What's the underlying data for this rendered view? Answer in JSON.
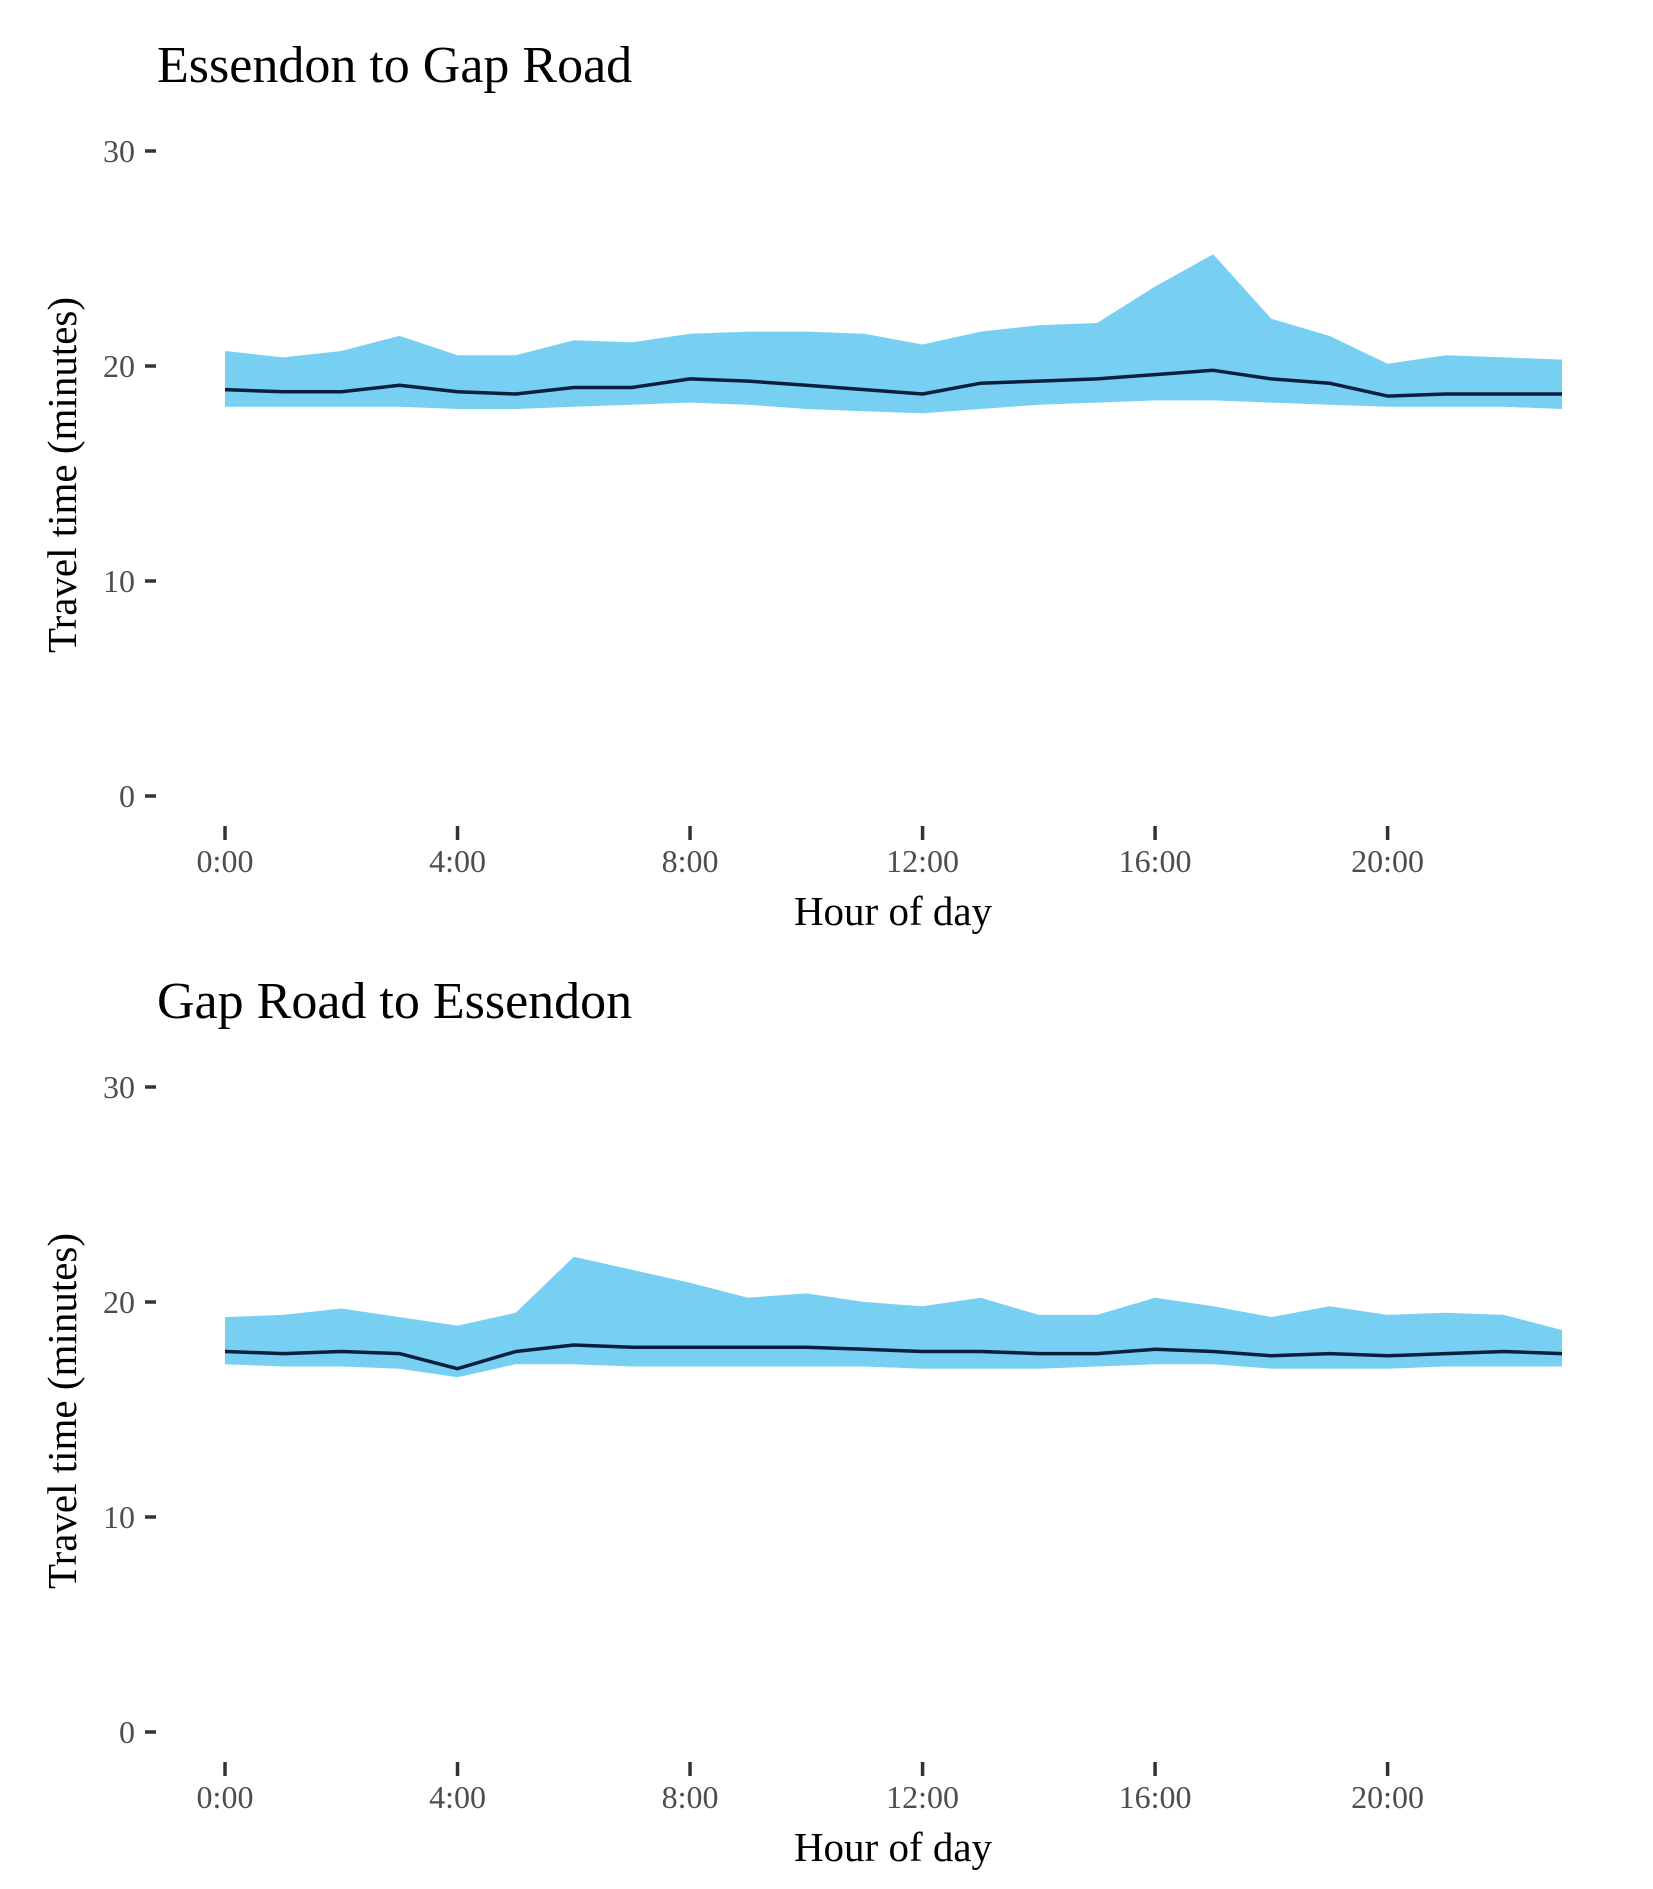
{
  "chart_data": [
    {
      "type": "area",
      "title": "Essendon to Gap Road",
      "xlabel": "Hour of day",
      "ylabel": "Travel time (minutes)",
      "ylim": [
        0,
        30
      ],
      "xlim": [
        0,
        23
      ],
      "x_ticks": [
        0,
        4,
        8,
        12,
        16,
        20
      ],
      "x_tick_labels": [
        "0:00",
        "4:00",
        "8:00",
        "12:00",
        "16:00",
        "20:00"
      ],
      "y_ticks": [
        0,
        10,
        20,
        30
      ],
      "y_tick_labels": [
        "0",
        "10",
        "20",
        "30"
      ],
      "x": [
        0,
        1,
        2,
        3,
        4,
        5,
        6,
        7,
        8,
        9,
        10,
        11,
        12,
        13,
        14,
        15,
        16,
        17,
        18,
        19,
        20,
        21,
        22,
        23
      ],
      "series": [
        {
          "role": "upper",
          "values": [
            20.7,
            20.4,
            20.7,
            21.4,
            20.5,
            20.5,
            21.2,
            21.1,
            21.5,
            21.6,
            21.6,
            21.5,
            21.0,
            21.6,
            21.9,
            22.0,
            23.7,
            25.2,
            22.2,
            21.4,
            20.1,
            20.5,
            20.4,
            20.3
          ]
        },
        {
          "role": "median",
          "values": [
            18.9,
            18.8,
            18.8,
            19.1,
            18.8,
            18.7,
            19.0,
            19.0,
            19.4,
            19.3,
            19.1,
            18.9,
            18.7,
            19.2,
            19.3,
            19.4,
            19.6,
            19.8,
            19.4,
            19.2,
            18.6,
            18.7,
            18.7,
            18.7
          ]
        },
        {
          "role": "lower",
          "values": [
            18.1,
            18.1,
            18.1,
            18.1,
            18.0,
            18.0,
            18.1,
            18.2,
            18.3,
            18.2,
            18.0,
            17.9,
            17.8,
            18.0,
            18.2,
            18.3,
            18.4,
            18.4,
            18.3,
            18.2,
            18.1,
            18.1,
            18.1,
            18.0
          ]
        }
      ],
      "colors": {
        "band": "#77d0f2",
        "line": "#0a1f3d"
      },
      "grid": false
    },
    {
      "type": "area",
      "title": "Gap Road to Essendon",
      "xlabel": "Hour of day",
      "ylabel": "Travel time (minutes)",
      "ylim": [
        0,
        30
      ],
      "xlim": [
        0,
        23
      ],
      "x_ticks": [
        0,
        4,
        8,
        12,
        16,
        20
      ],
      "x_tick_labels": [
        "0:00",
        "4:00",
        "8:00",
        "12:00",
        "16:00",
        "20:00"
      ],
      "y_ticks": [
        0,
        10,
        20,
        30
      ],
      "y_tick_labels": [
        "0",
        "10",
        "20",
        "30"
      ],
      "x": [
        0,
        1,
        2,
        3,
        4,
        5,
        6,
        7,
        8,
        9,
        10,
        11,
        12,
        13,
        14,
        15,
        16,
        17,
        18,
        19,
        20,
        21,
        22,
        23
      ],
      "series": [
        {
          "role": "upper",
          "values": [
            19.3,
            19.4,
            19.7,
            19.3,
            18.9,
            19.5,
            22.1,
            21.5,
            20.9,
            20.2,
            20.4,
            20.0,
            19.8,
            20.2,
            19.4,
            19.4,
            20.2,
            19.8,
            19.3,
            19.8,
            19.4,
            19.5,
            19.4,
            18.7
          ]
        },
        {
          "role": "median",
          "values": [
            17.7,
            17.6,
            17.7,
            17.6,
            16.9,
            17.7,
            18.0,
            17.9,
            17.9,
            17.9,
            17.9,
            17.8,
            17.7,
            17.7,
            17.6,
            17.6,
            17.8,
            17.7,
            17.5,
            17.6,
            17.5,
            17.6,
            17.7,
            17.6
          ]
        },
        {
          "role": "lower",
          "values": [
            17.1,
            17.0,
            17.0,
            16.9,
            16.5,
            17.1,
            17.1,
            17.0,
            17.0,
            17.0,
            17.0,
            17.0,
            16.9,
            16.9,
            16.9,
            17.0,
            17.1,
            17.1,
            16.9,
            16.9,
            16.9,
            17.0,
            17.0,
            17.0
          ]
        }
      ],
      "colors": {
        "band": "#77d0f2",
        "line": "#0a1f3d"
      },
      "grid": false
    }
  ]
}
